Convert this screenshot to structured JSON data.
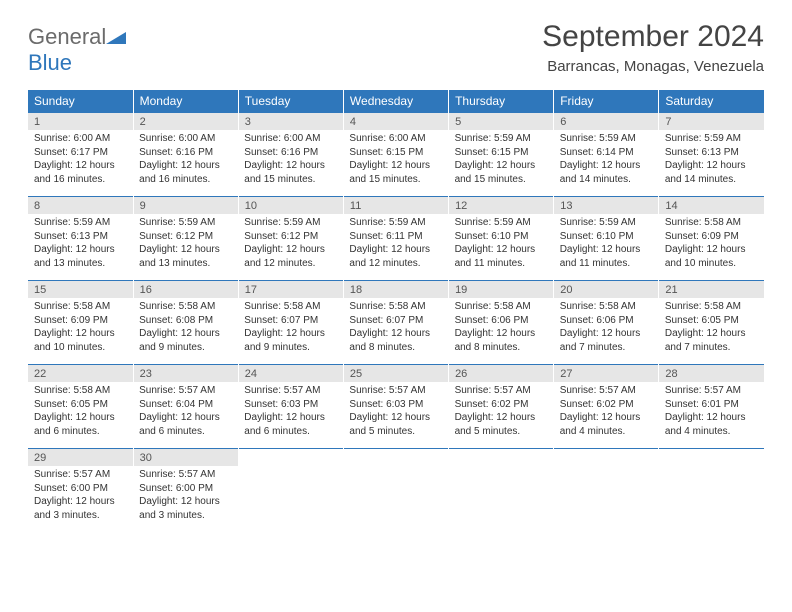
{
  "logo": {
    "text1": "General",
    "text2": "Blue"
  },
  "title": "September 2024",
  "location": "Barrancas, Monagas, Venezuela",
  "colors": {
    "header_bg": "#2f77bb",
    "header_text": "#ffffff",
    "daynum_bg": "#e6e6e6",
    "border": "#2f77bb",
    "body_text": "#333333",
    "page_bg": "#ffffff"
  },
  "weekdays": [
    "Sunday",
    "Monday",
    "Tuesday",
    "Wednesday",
    "Thursday",
    "Friday",
    "Saturday"
  ],
  "weeks": [
    [
      {
        "day": "1",
        "sunrise": "Sunrise: 6:00 AM",
        "sunset": "Sunset: 6:17 PM",
        "day1": "Daylight: 12 hours",
        "day2": "and 16 minutes."
      },
      {
        "day": "2",
        "sunrise": "Sunrise: 6:00 AM",
        "sunset": "Sunset: 6:16 PM",
        "day1": "Daylight: 12 hours",
        "day2": "and 16 minutes."
      },
      {
        "day": "3",
        "sunrise": "Sunrise: 6:00 AM",
        "sunset": "Sunset: 6:16 PM",
        "day1": "Daylight: 12 hours",
        "day2": "and 15 minutes."
      },
      {
        "day": "4",
        "sunrise": "Sunrise: 6:00 AM",
        "sunset": "Sunset: 6:15 PM",
        "day1": "Daylight: 12 hours",
        "day2": "and 15 minutes."
      },
      {
        "day": "5",
        "sunrise": "Sunrise: 5:59 AM",
        "sunset": "Sunset: 6:15 PM",
        "day1": "Daylight: 12 hours",
        "day2": "and 15 minutes."
      },
      {
        "day": "6",
        "sunrise": "Sunrise: 5:59 AM",
        "sunset": "Sunset: 6:14 PM",
        "day1": "Daylight: 12 hours",
        "day2": "and 14 minutes."
      },
      {
        "day": "7",
        "sunrise": "Sunrise: 5:59 AM",
        "sunset": "Sunset: 6:13 PM",
        "day1": "Daylight: 12 hours",
        "day2": "and 14 minutes."
      }
    ],
    [
      {
        "day": "8",
        "sunrise": "Sunrise: 5:59 AM",
        "sunset": "Sunset: 6:13 PM",
        "day1": "Daylight: 12 hours",
        "day2": "and 13 minutes."
      },
      {
        "day": "9",
        "sunrise": "Sunrise: 5:59 AM",
        "sunset": "Sunset: 6:12 PM",
        "day1": "Daylight: 12 hours",
        "day2": "and 13 minutes."
      },
      {
        "day": "10",
        "sunrise": "Sunrise: 5:59 AM",
        "sunset": "Sunset: 6:12 PM",
        "day1": "Daylight: 12 hours",
        "day2": "and 12 minutes."
      },
      {
        "day": "11",
        "sunrise": "Sunrise: 5:59 AM",
        "sunset": "Sunset: 6:11 PM",
        "day1": "Daylight: 12 hours",
        "day2": "and 12 minutes."
      },
      {
        "day": "12",
        "sunrise": "Sunrise: 5:59 AM",
        "sunset": "Sunset: 6:10 PM",
        "day1": "Daylight: 12 hours",
        "day2": "and 11 minutes."
      },
      {
        "day": "13",
        "sunrise": "Sunrise: 5:59 AM",
        "sunset": "Sunset: 6:10 PM",
        "day1": "Daylight: 12 hours",
        "day2": "and 11 minutes."
      },
      {
        "day": "14",
        "sunrise": "Sunrise: 5:58 AM",
        "sunset": "Sunset: 6:09 PM",
        "day1": "Daylight: 12 hours",
        "day2": "and 10 minutes."
      }
    ],
    [
      {
        "day": "15",
        "sunrise": "Sunrise: 5:58 AM",
        "sunset": "Sunset: 6:09 PM",
        "day1": "Daylight: 12 hours",
        "day2": "and 10 minutes."
      },
      {
        "day": "16",
        "sunrise": "Sunrise: 5:58 AM",
        "sunset": "Sunset: 6:08 PM",
        "day1": "Daylight: 12 hours",
        "day2": "and 9 minutes."
      },
      {
        "day": "17",
        "sunrise": "Sunrise: 5:58 AM",
        "sunset": "Sunset: 6:07 PM",
        "day1": "Daylight: 12 hours",
        "day2": "and 9 minutes."
      },
      {
        "day": "18",
        "sunrise": "Sunrise: 5:58 AM",
        "sunset": "Sunset: 6:07 PM",
        "day1": "Daylight: 12 hours",
        "day2": "and 8 minutes."
      },
      {
        "day": "19",
        "sunrise": "Sunrise: 5:58 AM",
        "sunset": "Sunset: 6:06 PM",
        "day1": "Daylight: 12 hours",
        "day2": "and 8 minutes."
      },
      {
        "day": "20",
        "sunrise": "Sunrise: 5:58 AM",
        "sunset": "Sunset: 6:06 PM",
        "day1": "Daylight: 12 hours",
        "day2": "and 7 minutes."
      },
      {
        "day": "21",
        "sunrise": "Sunrise: 5:58 AM",
        "sunset": "Sunset: 6:05 PM",
        "day1": "Daylight: 12 hours",
        "day2": "and 7 minutes."
      }
    ],
    [
      {
        "day": "22",
        "sunrise": "Sunrise: 5:58 AM",
        "sunset": "Sunset: 6:05 PM",
        "day1": "Daylight: 12 hours",
        "day2": "and 6 minutes."
      },
      {
        "day": "23",
        "sunrise": "Sunrise: 5:57 AM",
        "sunset": "Sunset: 6:04 PM",
        "day1": "Daylight: 12 hours",
        "day2": "and 6 minutes."
      },
      {
        "day": "24",
        "sunrise": "Sunrise: 5:57 AM",
        "sunset": "Sunset: 6:03 PM",
        "day1": "Daylight: 12 hours",
        "day2": "and 6 minutes."
      },
      {
        "day": "25",
        "sunrise": "Sunrise: 5:57 AM",
        "sunset": "Sunset: 6:03 PM",
        "day1": "Daylight: 12 hours",
        "day2": "and 5 minutes."
      },
      {
        "day": "26",
        "sunrise": "Sunrise: 5:57 AM",
        "sunset": "Sunset: 6:02 PM",
        "day1": "Daylight: 12 hours",
        "day2": "and 5 minutes."
      },
      {
        "day": "27",
        "sunrise": "Sunrise: 5:57 AM",
        "sunset": "Sunset: 6:02 PM",
        "day1": "Daylight: 12 hours",
        "day2": "and 4 minutes."
      },
      {
        "day": "28",
        "sunrise": "Sunrise: 5:57 AM",
        "sunset": "Sunset: 6:01 PM",
        "day1": "Daylight: 12 hours",
        "day2": "and 4 minutes."
      }
    ],
    [
      {
        "day": "29",
        "sunrise": "Sunrise: 5:57 AM",
        "sunset": "Sunset: 6:00 PM",
        "day1": "Daylight: 12 hours",
        "day2": "and 3 minutes."
      },
      {
        "day": "30",
        "sunrise": "Sunrise: 5:57 AM",
        "sunset": "Sunset: 6:00 PM",
        "day1": "Daylight: 12 hours",
        "day2": "and 3 minutes."
      },
      null,
      null,
      null,
      null,
      null
    ]
  ]
}
